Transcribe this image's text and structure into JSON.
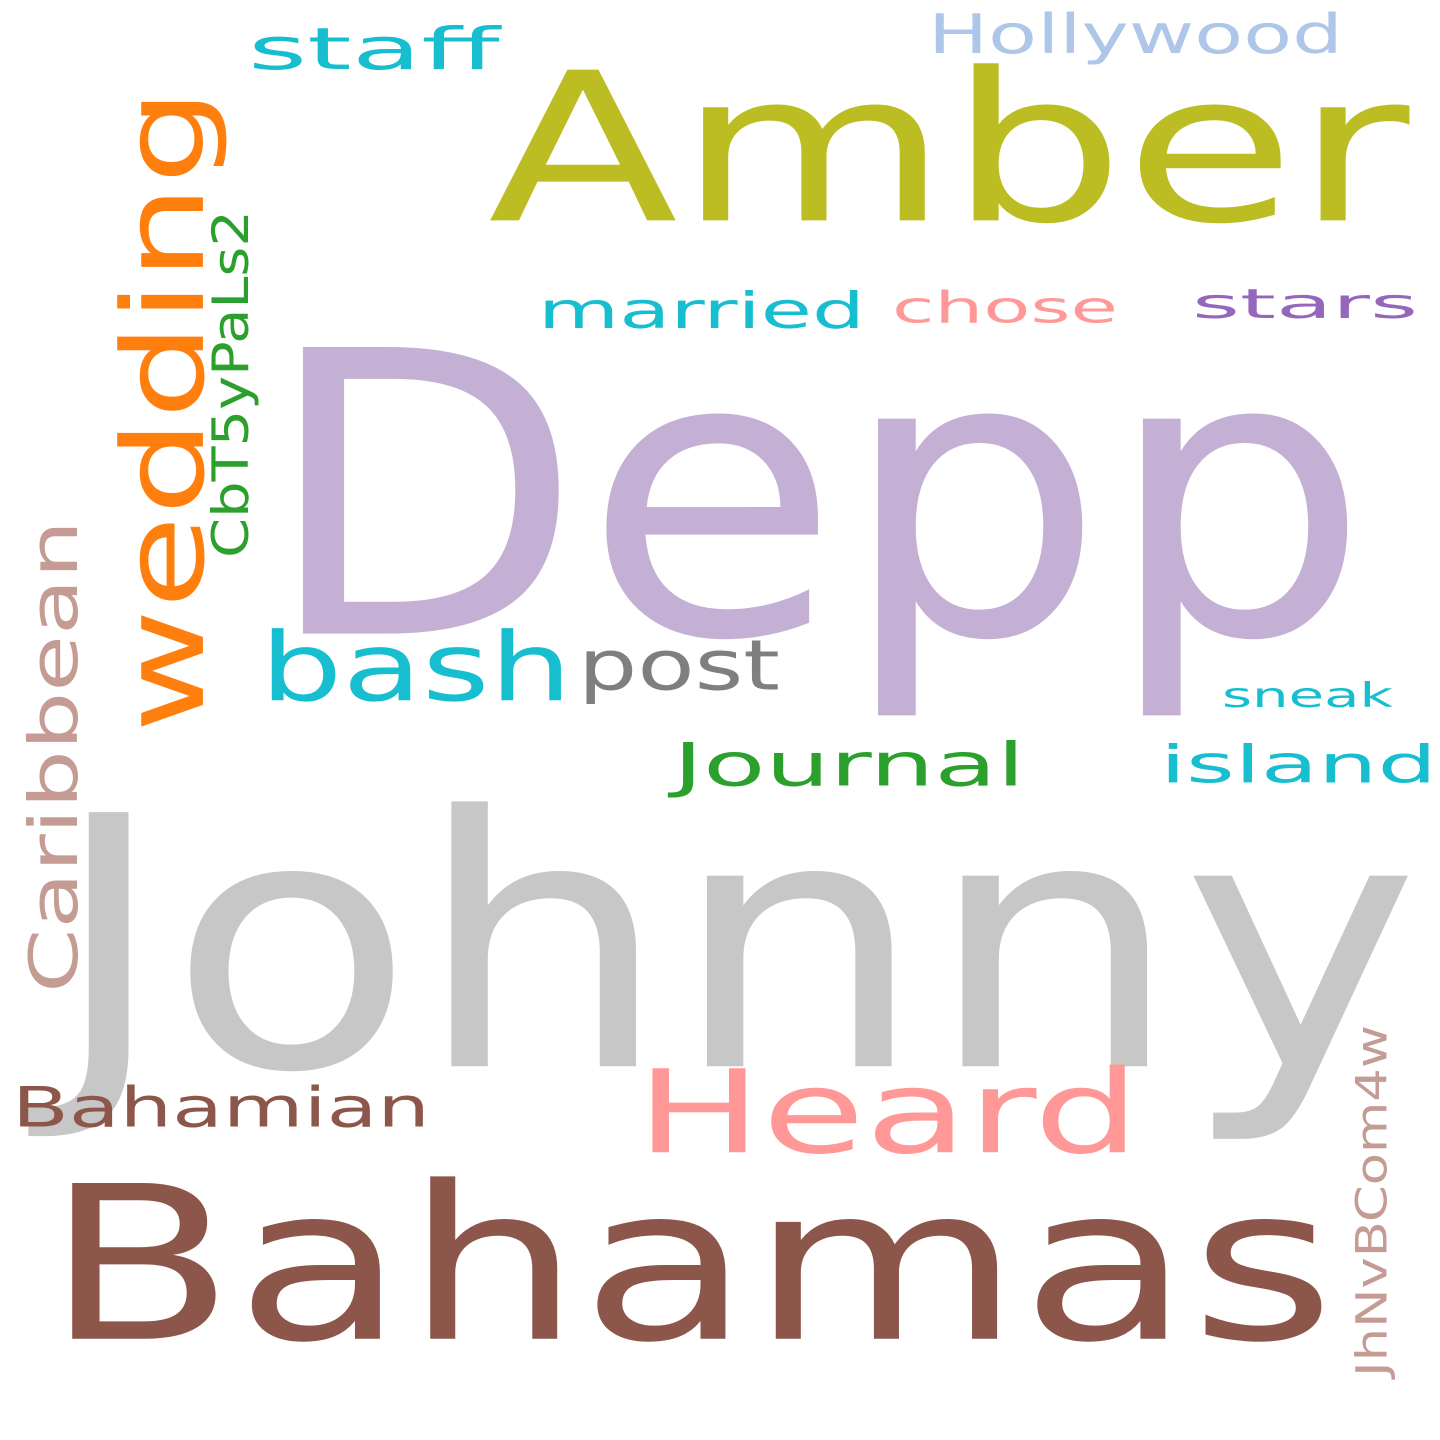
{
  "word_cloud": {
    "words": [
      {
        "id": "depp",
        "text": "Depp",
        "color": "#c5b0d5"
      },
      {
        "id": "johnny",
        "text": "Johnny",
        "color": "#c7c7c7"
      },
      {
        "id": "bahamas",
        "text": "Bahamas",
        "color": "#8c564b"
      },
      {
        "id": "amber",
        "text": "Amber",
        "color": "#bcbd22"
      },
      {
        "id": "heard",
        "text": "Heard",
        "color": "#ff9896"
      },
      {
        "id": "wedding",
        "text": "wedding",
        "color": "#ff7f0e"
      },
      {
        "id": "bash",
        "text": "bash",
        "color": "#17becf"
      },
      {
        "id": "caribbean",
        "text": "Caribbean",
        "color": "#c49c94"
      },
      {
        "id": "bahamian",
        "text": "Bahamian",
        "color": "#8c564b"
      },
      {
        "id": "journal",
        "text": "Journal",
        "color": "#2ca02c"
      },
      {
        "id": "post",
        "text": "post",
        "color": "#7f7f7f"
      },
      {
        "id": "married",
        "text": "married",
        "color": "#17becf"
      },
      {
        "id": "chose",
        "text": "chose",
        "color": "#ff9896"
      },
      {
        "id": "stars",
        "text": "stars",
        "color": "#9467bd"
      },
      {
        "id": "staff",
        "text": "staff",
        "color": "#17becf"
      },
      {
        "id": "hollywood",
        "text": "Hollywood",
        "color": "#aec7e8"
      },
      {
        "id": "island",
        "text": "island",
        "color": "#17becf"
      },
      {
        "id": "sneak",
        "text": "sneak",
        "color": "#17becf"
      },
      {
        "id": "cbt5",
        "text": "CbT5yPaLs2",
        "color": "#2ca02c"
      },
      {
        "id": "jhnv",
        "text": "JhNvBCom4w",
        "color": "#c49c94"
      }
    ]
  }
}
